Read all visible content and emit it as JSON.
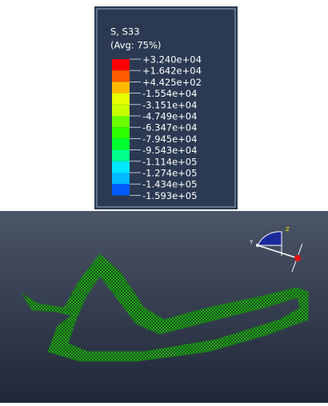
{
  "legend": {
    "title": "S, S33",
    "subtitle": "(Avg: 75%)",
    "labels": [
      "+3.240e+04",
      "+1.642e+04",
      "+4.425e+02",
      "-1.554e+04",
      "-3.151e+04",
      "-4.749e+04",
      "-6.347e+04",
      "-7.945e+04",
      "-9.543e+04",
      "-1.114e+05",
      "-1.274e+05",
      "-1.434e+05",
      "-1.593e+05"
    ],
    "colors": [
      "#ff0000",
      "#ff5c00",
      "#ffb900",
      "#e7ff00",
      "#c8ff00",
      "#6cff00",
      "#2eff00",
      "#00ff2e",
      "#00ff8b",
      "#00e7ff",
      "#00b9ff",
      "#005cff",
      "#0000ff"
    ]
  },
  "triad": {
    "labels": [
      "Y",
      "Z"
    ]
  }
}
